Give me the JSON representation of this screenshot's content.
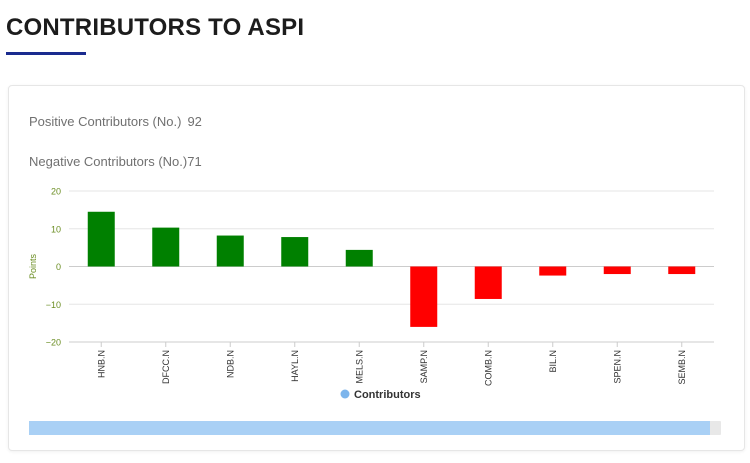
{
  "page": {
    "title": "CONTRIBUTORS TO ASPI"
  },
  "stats": {
    "positive_label": "Positive Contributors (No.)",
    "positive_value": "92",
    "negative_label": "Negative Contributors (No.)",
    "negative_value": "71"
  },
  "colors": {
    "positive": "#008000",
    "negative": "#ff0000",
    "legend_marker": "#7cb5ec",
    "axis_label": "#6b8e23"
  },
  "chart_data": {
    "type": "bar",
    "categories": [
      "HNB.N",
      "DFCC.N",
      "NDB.N",
      "HAYL.N",
      "MELS.N",
      "SAMP.N",
      "COMB.N",
      "BIL.N",
      "SPEN.N",
      "SEMB.N"
    ],
    "series": [
      {
        "name": "Contributors",
        "values": [
          14.5,
          10.3,
          8.2,
          7.8,
          4.4,
          -16.0,
          -8.6,
          -2.4,
          -2.0,
          -2.0
        ]
      }
    ],
    "ylabel": "Points",
    "ylim": [
      -20,
      20
    ],
    "yticks": [
      20,
      10,
      0,
      -10,
      -20
    ],
    "ytick_labels": [
      "20",
      "10",
      "0",
      "−10",
      "−20"
    ],
    "grid": true,
    "legend": "bottom-center"
  }
}
